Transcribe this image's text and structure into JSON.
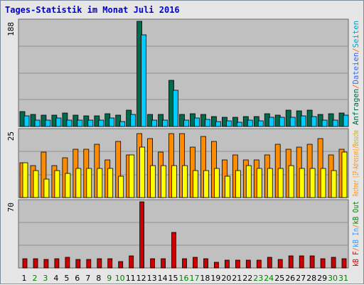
{
  "title": "Tages-Statistik im Monat Juli 2016",
  "colors": {
    "weekday": "#000000",
    "weekend": "#008000",
    "hits": "#006a4e",
    "files": "#00ccff",
    "visits": "#ff8c00",
    "sites": "#ffff00",
    "kbin": "#3399ff",
    "kbf": "#cc0000"
  },
  "chart_data": [
    {
      "type": "bar",
      "panel": "requests",
      "ymax_label": "188",
      "ylim": [
        0,
        188
      ],
      "categories": [
        "1",
        "2",
        "3",
        "4",
        "5",
        "6",
        "7",
        "8",
        "9",
        "10",
        "11",
        "12",
        "13",
        "14",
        "15",
        "16",
        "17",
        "18",
        "19",
        "20",
        "21",
        "22",
        "23",
        "24",
        "25",
        "26",
        "27",
        "28",
        "29",
        "30",
        "31"
      ],
      "series": [
        {
          "name": "Anfragen",
          "values": [
            27,
            22,
            20,
            20,
            24,
            20,
            19,
            19,
            23,
            20,
            29,
            188,
            22,
            22,
            82,
            22,
            23,
            22,
            18,
            16,
            17,
            18,
            18,
            23,
            20,
            29,
            28,
            29,
            22,
            23,
            24
          ]
        },
        {
          "name": "Dateien",
          "values": [
            19,
            12,
            12,
            15,
            12,
            12,
            11,
            12,
            15,
            9,
            21,
            164,
            12,
            12,
            65,
            11,
            15,
            13,
            9,
            10,
            8,
            12,
            10,
            17,
            16,
            16,
            19,
            18,
            12,
            12,
            20
          ]
        }
      ]
    },
    {
      "type": "bar",
      "panel": "visits",
      "ymax_label": "25",
      "ylim": [
        0,
        25
      ],
      "categories": [
        "1",
        "2",
        "3",
        "4",
        "5",
        "6",
        "7",
        "8",
        "9",
        "10",
        "11",
        "12",
        "13",
        "14",
        "15",
        "16",
        "17",
        "18",
        "19",
        "20",
        "21",
        "22",
        "23",
        "24",
        "25",
        "26",
        "27",
        "28",
        "29",
        "30",
        "31"
      ],
      "series": [
        {
          "name": "Rechner (IP-Adressen)",
          "values": [
            13,
            12,
            17,
            12,
            15,
            18,
            18,
            20,
            14,
            21,
            16,
            24,
            22,
            17,
            24,
            24,
            19,
            23,
            21,
            14,
            16,
            14,
            14,
            16,
            20,
            18,
            19,
            20,
            22,
            16,
            18
          ]
        },
        {
          "name": "Besuche",
          "values": [
            13,
            10,
            7,
            10,
            9,
            11,
            11,
            11,
            11,
            8,
            16,
            19,
            12,
            12,
            12,
            12,
            10,
            10,
            11,
            8,
            10,
            12,
            11,
            11,
            11,
            12,
            11,
            11,
            11,
            10,
            17
          ]
        }
      ]
    },
    {
      "type": "bar",
      "panel": "kbf",
      "ymax_label": "70",
      "ylim": [
        0,
        70
      ],
      "categories": [
        "1",
        "2",
        "3",
        "4",
        "5",
        "6",
        "7",
        "8",
        "9",
        "10",
        "11",
        "12",
        "13",
        "14",
        "15",
        "16",
        "17",
        "18",
        "19",
        "20",
        "21",
        "22",
        "23",
        "24",
        "25",
        "26",
        "27",
        "28",
        "29",
        "30",
        "31"
      ],
      "series": [
        {
          "name": "kB F",
          "values": [
            10,
            10,
            9,
            10,
            11,
            9,
            9,
            10,
            10,
            7,
            13,
            70,
            10,
            10,
            38,
            10,
            11,
            10,
            6,
            8,
            8,
            8,
            8,
            11,
            9,
            13,
            13,
            13,
            10,
            11,
            10
          ]
        }
      ]
    }
  ],
  "side_legends": {
    "top": [
      {
        "text": "Anfragen",
        "color": "#006a4e"
      },
      {
        "text": "/",
        "color": "#ff6600"
      },
      {
        "text": "Dateien",
        "color": "#3366ff"
      },
      {
        "text": "/",
        "color": "#ff6600"
      },
      {
        "text": "Seiten",
        "color": "#00a0c0"
      }
    ],
    "middle": [
      {
        "text": "Rechner (IP-Adressen)",
        "color": "#ff8c00"
      },
      {
        "text": "/",
        "color": "#ff6600"
      },
      {
        "text": "Besuche",
        "color": "#ccaa00"
      }
    ],
    "bottom": [
      {
        "text": "kB F",
        "color": "#cc0000"
      },
      {
        "text": "/",
        "color": "#ff6600"
      },
      {
        "text": "kB In",
        "color": "#3399ff"
      },
      {
        "text": "/",
        "color": "#ff6600"
      },
      {
        "text": "kB Out",
        "color": "#008000"
      }
    ]
  },
  "weekend_days": [
    "2",
    "3",
    "9",
    "10",
    "16",
    "17",
    "23",
    "24",
    "30",
    "31"
  ]
}
